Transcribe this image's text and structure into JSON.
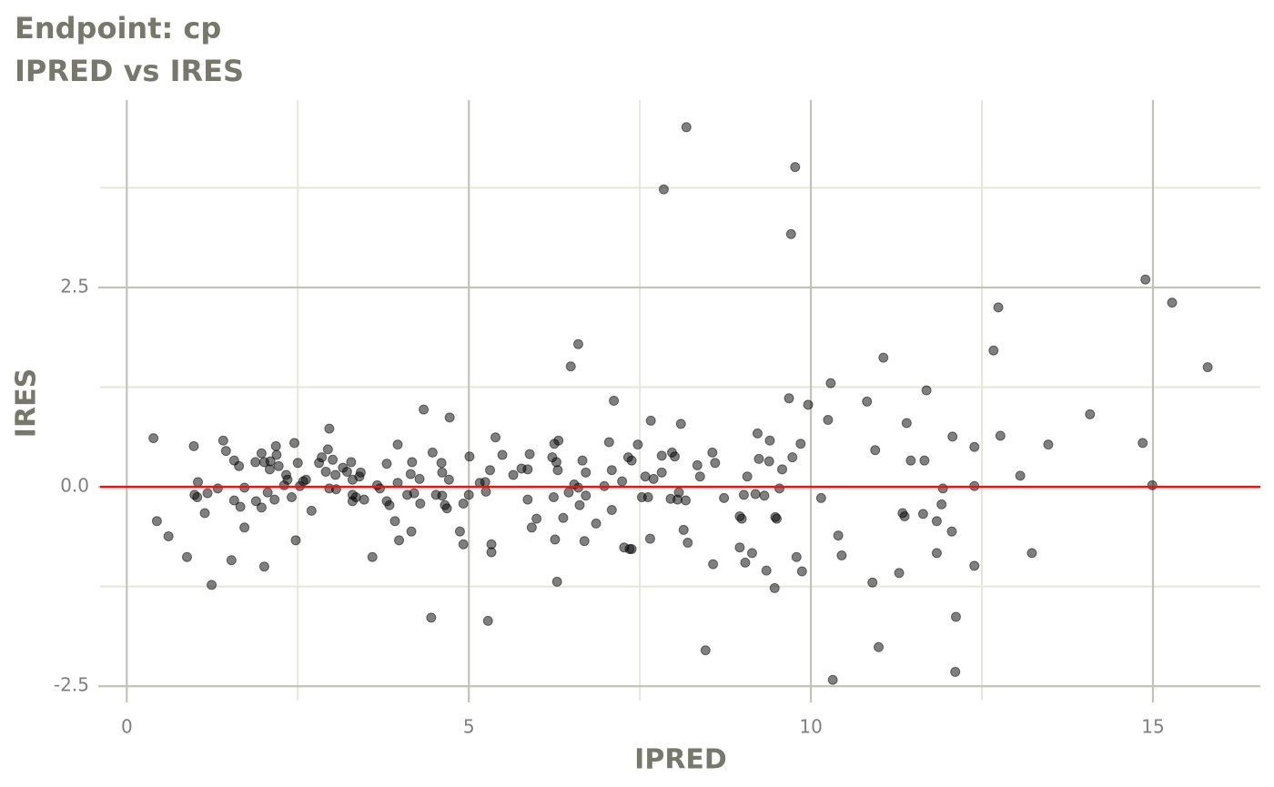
{
  "chart_data": {
    "type": "scatter",
    "title": "Endpoint:  cp",
    "subtitle": "IPRED vs IRES",
    "x_label": "IPRED",
    "y_label": "IRES",
    "xlim": [
      -0.39,
      16.57
    ],
    "ylim": [
      -2.68,
      4.85
    ],
    "xticks": [
      0,
      5,
      10,
      15
    ],
    "yticks": [
      -2.5,
      {
        "value": 0,
        "label": "0.0"
      },
      2.5
    ],
    "x_minor_grid": [
      2.5,
      7.5,
      12.5
    ],
    "y_minor_grid": [
      -1.25,
      1.25,
      3.75
    ],
    "grid": true,
    "reference_line": {
      "value": 0,
      "color": "#ee1111"
    },
    "series": [
      {
        "color": "#000000",
        "opacity": 0.5,
        "x": [
          0.39,
          0.44,
          0.61,
          0.88,
          0.98,
          0.99,
          1.03,
          1.04,
          1.14,
          1.18,
          1.24,
          1.33,
          1.41,
          1.45,
          1.53,
          1.57,
          1.57,
          1.64,
          1.66,
          1.72,
          1.72,
          1.88,
          1.89,
          1.97,
          1.97,
          2.01,
          2.01,
          2.06,
          2.09,
          2.1,
          2.16,
          2.18,
          2.19,
          2.22,
          2.3,
          2.33,
          2.35,
          2.41,
          2.45,
          2.47,
          2.5,
          2.53,
          2.58,
          2.62,
          2.7,
          2.81,
          2.85,
          2.91,
          2.94,
          2.96,
          2.96,
          3.01,
          3.05,
          3.06,
          3.16,
          3.22,
          3.28,
          3.3,
          3.3,
          3.3,
          3.35,
          3.4,
          3.42,
          3.47,
          3.59,
          3.66,
          3.7,
          3.8,
          3.8,
          3.84,
          3.92,
          3.96,
          3.96,
          3.98,
          4.1,
          4.15,
          4.16,
          4.17,
          4.2,
          4.28,
          4.29,
          4.34,
          4.45,
          4.47,
          4.52,
          4.6,
          4.61,
          4.61,
          4.65,
          4.68,
          4.71,
          4.72,
          4.87,
          4.92,
          4.92,
          5.0,
          5.01,
          5.16,
          5.24,
          5.25,
          5.28,
          5.31,
          5.33,
          5.33,
          5.39,
          5.49,
          5.65,
          5.77,
          5.86,
          5.86,
          5.89,
          5.92,
          5.99,
          6.22,
          6.24,
          6.25,
          6.26,
          6.28,
          6.3,
          6.29,
          6.31,
          6.38,
          6.46,
          6.49,
          6.54,
          6.6,
          6.6,
          6.62,
          6.66,
          6.69,
          6.71,
          6.71,
          6.86,
          6.98,
          7.05,
          7.09,
          7.09,
          7.12,
          7.24,
          7.27,
          7.33,
          7.35,
          7.38,
          7.38,
          7.47,
          7.53,
          7.58,
          7.62,
          7.65,
          7.66,
          7.7,
          7.82,
          7.82,
          7.85,
          7.95,
          7.97,
          8.01,
          8.05,
          8.07,
          8.1,
          8.14,
          8.17,
          8.18,
          8.2,
          8.34,
          8.38,
          8.46,
          8.56,
          8.57,
          8.6,
          8.73,
          8.96,
          8.96,
          8.99,
          9.02,
          9.04,
          9.07,
          9.14,
          9.19,
          9.22,
          9.24,
          9.32,
          9.35,
          9.39,
          9.4,
          9.47,
          9.48,
          9.5,
          9.54,
          9.58,
          9.68,
          9.71,
          9.73,
          9.77,
          9.79,
          9.85,
          9.87,
          9.96,
          10.15,
          10.25,
          10.29,
          10.32,
          10.4,
          10.45,
          10.82,
          10.9,
          10.94,
          10.99,
          11.06,
          11.29,
          11.34,
          11.37,
          11.4,
          11.46,
          11.64,
          11.66,
          11.69,
          11.84,
          11.84,
          11.91,
          11.93,
          12.06,
          12.07,
          12.11,
          12.12,
          12.39,
          12.39,
          12.39,
          12.67,
          12.74,
          12.77,
          13.06,
          13.23,
          13.47,
          14.08,
          14.85,
          14.89,
          14.99,
          15.28,
          15.8
        ],
        "values": [
          0.61,
          -0.43,
          -0.62,
          -0.88,
          0.51,
          -0.1,
          -0.13,
          0.06,
          -0.33,
          -0.08,
          -1.23,
          -0.02,
          0.58,
          0.45,
          -0.92,
          0.33,
          -0.17,
          0.26,
          -0.25,
          -0.51,
          -0.01,
          0.31,
          -0.18,
          0.42,
          -0.26,
          -1.0,
          0.31,
          -0.07,
          0.22,
          0.32,
          -0.16,
          0.51,
          0.4,
          0.26,
          0.02,
          0.15,
          0.09,
          -0.13,
          0.55,
          -0.67,
          0.3,
          0.01,
          0.07,
          0.09,
          -0.3,
          0.3,
          0.37,
          0.19,
          0.47,
          0.73,
          -0.02,
          0.34,
          0.15,
          -0.03,
          0.24,
          0.19,
          0.31,
          0.09,
          -0.1,
          -0.18,
          -0.13,
          0.13,
          0.18,
          -0.16,
          -0.88,
          0.02,
          -0.02,
          0.29,
          -0.18,
          -0.23,
          -0.43,
          0.53,
          0.05,
          -0.67,
          -0.1,
          0.16,
          -0.56,
          0.31,
          -0.08,
          0.1,
          -0.21,
          0.97,
          -1.64,
          0.43,
          -0.1,
          0.3,
          0.18,
          -0.11,
          -0.23,
          -0.27,
          0.09,
          0.87,
          -0.56,
          -0.72,
          -0.21,
          -0.1,
          0.38,
          0.05,
          0.06,
          -0.06,
          -1.68,
          0.21,
          -0.72,
          -0.82,
          0.62,
          0.4,
          0.15,
          0.23,
          0.22,
          -0.16,
          0.41,
          -0.51,
          -0.4,
          0.37,
          -0.13,
          0.54,
          -0.66,
          0.31,
          0.21,
          -1.19,
          0.58,
          -0.39,
          -0.07,
          1.51,
          0.03,
          -0.01,
          1.79,
          -0.23,
          0.33,
          -0.68,
          -0.11,
          0.18,
          -0.46,
          0.01,
          0.56,
          -0.29,
          0.21,
          1.08,
          0.07,
          -0.76,
          0.37,
          -0.78,
          -0.78,
          0.33,
          0.53,
          -0.13,
          0.13,
          -0.13,
          -0.65,
          0.83,
          0.1,
          0.18,
          0.39,
          3.73,
          -0.15,
          0.43,
          0.38,
          -0.16,
          -0.07,
          0.79,
          -0.54,
          -0.17,
          4.51,
          -0.7,
          0.27,
          0.13,
          -2.05,
          0.43,
          -0.97,
          0.3,
          -0.14,
          -0.37,
          -0.76,
          -0.4,
          -0.1,
          -0.95,
          0.13,
          -0.83,
          -0.09,
          0.67,
          0.35,
          -0.11,
          -1.05,
          0.32,
          0.58,
          -1.27,
          -0.38,
          -0.4,
          -0.02,
          0.22,
          1.11,
          3.17,
          0.37,
          4.01,
          -0.88,
          0.54,
          -1.06,
          1.03,
          -0.14,
          0.84,
          1.3,
          -2.42,
          -0.61,
          -0.86,
          1.07,
          -1.2,
          0.46,
          -2.01,
          1.62,
          -1.08,
          -0.33,
          -0.37,
          0.8,
          0.33,
          -0.34,
          0.33,
          1.21,
          -0.43,
          -0.83,
          -0.22,
          -0.02,
          -0.56,
          0.63,
          -2.32,
          -1.63,
          -0.99,
          0.5,
          0.01,
          1.71,
          2.25,
          0.64,
          0.14,
          -0.83,
          0.53,
          0.91,
          0.55,
          2.6,
          0.02,
          2.31,
          1.5
        ]
      }
    ]
  }
}
